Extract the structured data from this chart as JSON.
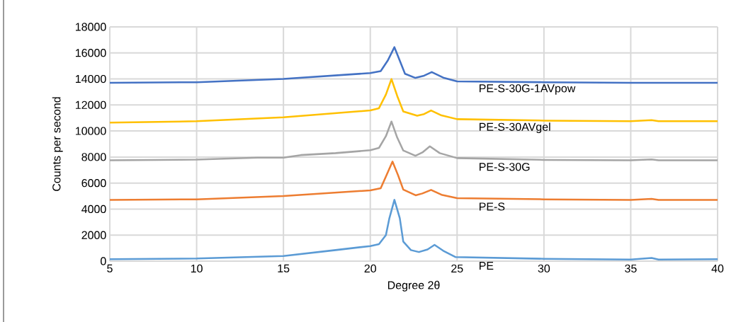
{
  "chart_data": {
    "type": "line",
    "xlabel": "Degree 2θ",
    "ylabel": "Counts per second",
    "xlim": [
      5,
      40
    ],
    "ylim": [
      0,
      18000
    ],
    "xticks": [
      5,
      10,
      15,
      20,
      25,
      30,
      35,
      40
    ],
    "yticks": [
      0,
      2000,
      4000,
      6000,
      8000,
      10000,
      12000,
      14000,
      16000,
      18000
    ],
    "grid": true,
    "legend": false,
    "series": [
      {
        "name": "PE",
        "color": "#5b9bd5",
        "x": [
          5,
          10,
          15,
          18,
          20,
          20.5,
          20.9,
          21.1,
          21.39,
          21.7,
          21.9,
          22.34,
          22.8,
          23.3,
          23.7,
          24.2,
          24.92,
          30,
          35,
          36.2,
          36.6,
          40
        ],
        "values": [
          150,
          200,
          400,
          850,
          1160,
          1300,
          2000,
          3300,
          4710,
          3300,
          1500,
          850,
          700,
          900,
          1250,
          800,
          310,
          180,
          120,
          250,
          120,
          150
        ]
      },
      {
        "name": "PE-S",
        "color": "#ed7d31",
        "x": [
          5,
          10,
          15,
          20,
          20.6,
          20.9,
          21.28,
          21.6,
          21.9,
          22.61,
          23.0,
          23.5,
          24.1,
          25,
          30,
          35,
          36.2,
          36.6,
          40
        ],
        "values": [
          4700,
          4750,
          5000,
          5440,
          5600,
          6500,
          7650,
          6600,
          5500,
          5060,
          5200,
          5475,
          5100,
          4840,
          4750,
          4700,
          4780,
          4700,
          4700
        ]
      },
      {
        "name": "PE-S-30G",
        "color": "#a5a5a5",
        "x": [
          5,
          10,
          13.5,
          15,
          16,
          18,
          20,
          20.5,
          20.9,
          21.22,
          21.55,
          21.9,
          22.6,
          23.0,
          23.43,
          24.0,
          25,
          30,
          35,
          36.2,
          36.6,
          40
        ],
        "values": [
          7750,
          7800,
          7950,
          7950,
          8150,
          8300,
          8520,
          8700,
          9600,
          10730,
          9500,
          8500,
          8100,
          8350,
          8820,
          8300,
          7920,
          7780,
          7750,
          7820,
          7750,
          7750
        ]
      },
      {
        "name": "PE-S-30AVgel",
        "color": "#ffc000",
        "x": [
          5,
          10,
          15,
          20,
          20.5,
          20.9,
          21.22,
          21.55,
          21.9,
          22.7,
          23.1,
          23.5,
          24.1,
          25,
          30,
          35,
          36.2,
          36.6,
          40
        ],
        "values": [
          10650,
          10750,
          11050,
          11580,
          11750,
          12800,
          13990,
          12700,
          11500,
          11180,
          11300,
          11580,
          11200,
          10910,
          10800,
          10750,
          10830,
          10750,
          10750
        ]
      },
      {
        "name": "PE-S-30G-1AVpow",
        "color": "#4472c4",
        "x": [
          5,
          10,
          15,
          20,
          20.6,
          21.0,
          21.39,
          21.7,
          22.0,
          22.6,
          23.1,
          23.54,
          24.2,
          25,
          30,
          35,
          40
        ],
        "values": [
          13700,
          13750,
          14000,
          14450,
          14600,
          15400,
          16440,
          15400,
          14400,
          14080,
          14250,
          14530,
          14100,
          13810,
          13750,
          13700,
          13700
        ]
      }
    ]
  }
}
